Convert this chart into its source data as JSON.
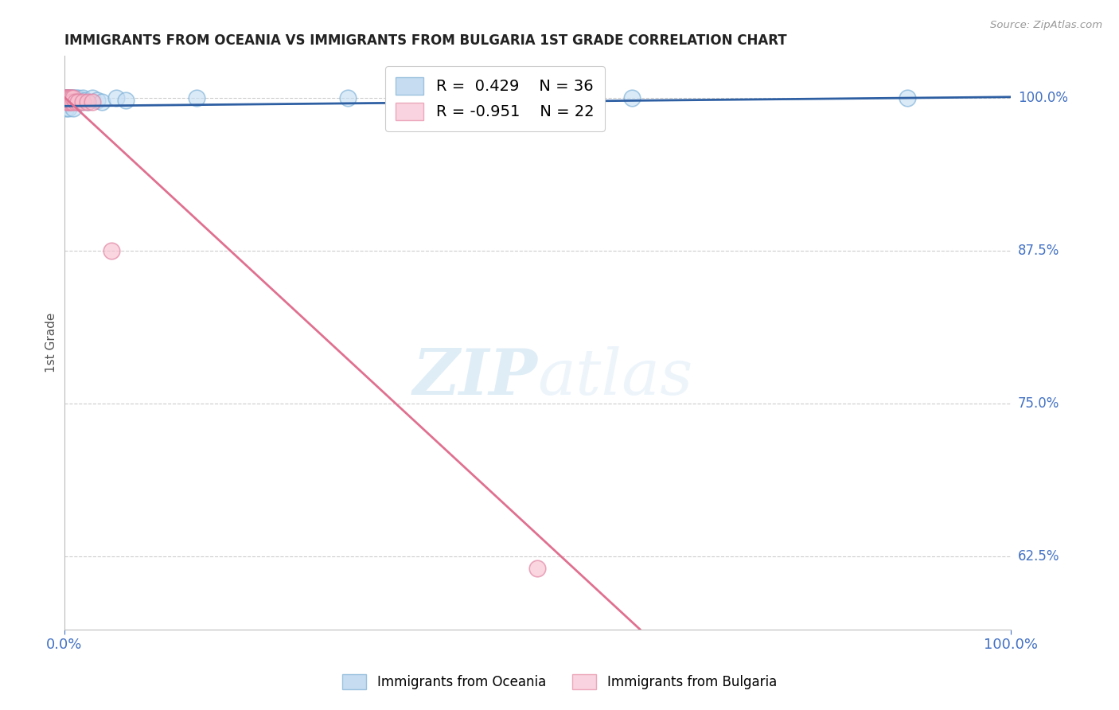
{
  "title": "IMMIGRANTS FROM OCEANIA VS IMMIGRANTS FROM BULGARIA 1ST GRADE CORRELATION CHART",
  "source": "Source: ZipAtlas.com",
  "ylabel": "1st Grade",
  "ytick_labels": [
    "100.0%",
    "87.5%",
    "75.0%",
    "62.5%"
  ],
  "ytick_values": [
    1.0,
    0.875,
    0.75,
    0.625
  ],
  "ylim": [
    0.565,
    1.035
  ],
  "xlim": [
    0.0,
    1.0
  ],
  "legend_entries": [
    {
      "label": "Immigrants from Oceania",
      "color": "#a8c8e8",
      "R": 0.429,
      "N": 36
    },
    {
      "label": "Immigrants from Bulgaria",
      "color": "#f4a0b8",
      "R": -0.951,
      "N": 22
    }
  ],
  "blue_scatter_x": [
    0.001,
    0.001,
    0.002,
    0.002,
    0.003,
    0.003,
    0.004,
    0.004,
    0.005,
    0.005,
    0.006,
    0.007,
    0.008,
    0.009,
    0.01,
    0.011,
    0.012,
    0.013,
    0.015,
    0.016,
    0.018,
    0.02,
    0.022,
    0.025,
    0.03,
    0.035,
    0.04,
    0.055,
    0.065,
    0.14,
    0.3,
    0.6,
    0.89,
    0.002,
    0.005,
    0.01
  ],
  "blue_scatter_y": [
    1.0,
    0.995,
    1.0,
    0.995,
    1.0,
    0.998,
    1.0,
    0.997,
    1.0,
    0.998,
    1.0,
    0.997,
    1.0,
    0.998,
    1.0,
    0.997,
    1.0,
    0.997,
    1.0,
    0.998,
    0.997,
    1.0,
    0.998,
    0.997,
    1.0,
    0.998,
    0.997,
    1.0,
    0.998,
    1.0,
    1.0,
    1.0,
    1.0,
    0.992,
    0.992,
    0.992
  ],
  "pink_scatter_x": [
    0.001,
    0.001,
    0.002,
    0.002,
    0.003,
    0.003,
    0.004,
    0.004,
    0.005,
    0.005,
    0.006,
    0.007,
    0.008,
    0.009,
    0.01,
    0.012,
    0.015,
    0.02,
    0.025,
    0.03,
    0.05,
    0.5
  ],
  "pink_scatter_y": [
    1.0,
    0.998,
    1.0,
    0.998,
    1.0,
    0.997,
    1.0,
    0.997,
    1.0,
    0.997,
    1.0,
    0.997,
    1.0,
    0.997,
    1.0,
    0.997,
    0.997,
    0.997,
    0.997,
    0.997,
    0.875,
    0.615
  ],
  "blue_line_x_start": 0.0,
  "blue_line_x_end": 1.0,
  "blue_line_y_start": 0.9935,
  "blue_line_y_end": 1.001,
  "pink_line_x_start": 0.0,
  "pink_line_x_end": 0.608,
  "pink_line_y_start": 1.001,
  "pink_line_y_end": 0.565,
  "blue_line_color": "#2e5fa3",
  "pink_line_color": "#e07090",
  "watermark_zip": "ZIP",
  "watermark_atlas": "atlas",
  "bg_color": "#ffffff",
  "grid_color": "#cccccc",
  "title_color": "#222222",
  "tick_color": "#4472c4"
}
